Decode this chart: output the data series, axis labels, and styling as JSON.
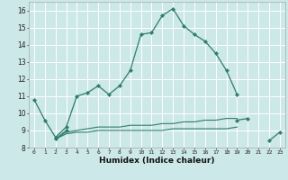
{
  "x": [
    0,
    1,
    2,
    3,
    4,
    5,
    6,
    7,
    8,
    9,
    10,
    11,
    12,
    13,
    14,
    15,
    16,
    17,
    18,
    19,
    20,
    21,
    22,
    23
  ],
  "line1": [
    10.8,
    9.6,
    8.6,
    9.2,
    11.0,
    11.2,
    11.6,
    11.1,
    11.6,
    12.5,
    14.6,
    14.7,
    15.7,
    16.1,
    15.1,
    14.6,
    14.2,
    13.5,
    12.5,
    11.1,
    null,
    null,
    null,
    null
  ],
  "line2": [
    null,
    null,
    8.5,
    9.0,
    null,
    null,
    null,
    null,
    null,
    null,
    null,
    null,
    null,
    null,
    null,
    null,
    null,
    null,
    null,
    9.6,
    9.7,
    null,
    8.4,
    8.9
  ],
  "line3": [
    null,
    null,
    8.5,
    8.9,
    9.0,
    9.1,
    9.2,
    9.2,
    9.2,
    9.3,
    9.3,
    9.3,
    9.4,
    9.4,
    9.5,
    9.5,
    9.6,
    9.6,
    9.7,
    9.7,
    null,
    null,
    null,
    null
  ],
  "line4": [
    null,
    null,
    8.5,
    8.8,
    8.9,
    8.9,
    9.0,
    9.0,
    9.0,
    9.0,
    9.0,
    9.0,
    9.0,
    9.1,
    9.1,
    9.1,
    9.1,
    9.1,
    9.1,
    9.2,
    null,
    null,
    null,
    null
  ],
  "bg_color": "#cce8e8",
  "grid_color": "#ffffff",
  "line_color": "#2e7d6e",
  "xlabel": "Humidex (Indice chaleur)",
  "ylim": [
    8,
    16.5
  ],
  "xlim": [
    -0.5,
    23.5
  ],
  "yticks": [
    8,
    9,
    10,
    11,
    12,
    13,
    14,
    15,
    16
  ],
  "xticks": [
    0,
    1,
    2,
    3,
    4,
    5,
    6,
    7,
    8,
    9,
    10,
    11,
    12,
    13,
    14,
    15,
    16,
    17,
    18,
    19,
    20,
    21,
    22,
    23
  ]
}
